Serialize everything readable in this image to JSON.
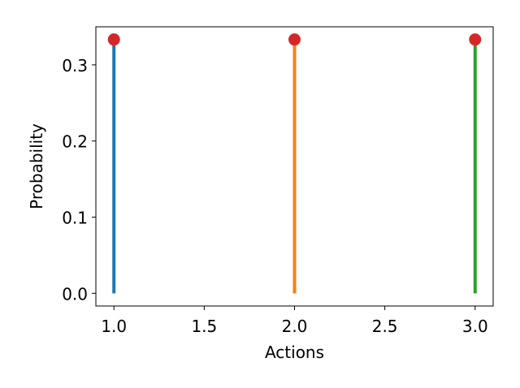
{
  "chart_data": {
    "type": "stem",
    "title": "",
    "xlabel": "Actions",
    "ylabel": "Probability",
    "xlim": [
      0.9,
      3.1
    ],
    "ylim": [
      -0.0167,
      0.35
    ],
    "xticks": [
      "1.0",
      "1.5",
      "2.0",
      "2.5",
      "3.0"
    ],
    "yticks": [
      "0.0",
      "0.1",
      "0.2",
      "0.3"
    ],
    "grid": false,
    "x": [
      1,
      2,
      3
    ],
    "values": [
      0.3333,
      0.3333,
      0.3333
    ],
    "stem_colors": [
      "#1f77b4",
      "#ff7f0e",
      "#2ca02c"
    ],
    "marker_color": "#d62728"
  }
}
